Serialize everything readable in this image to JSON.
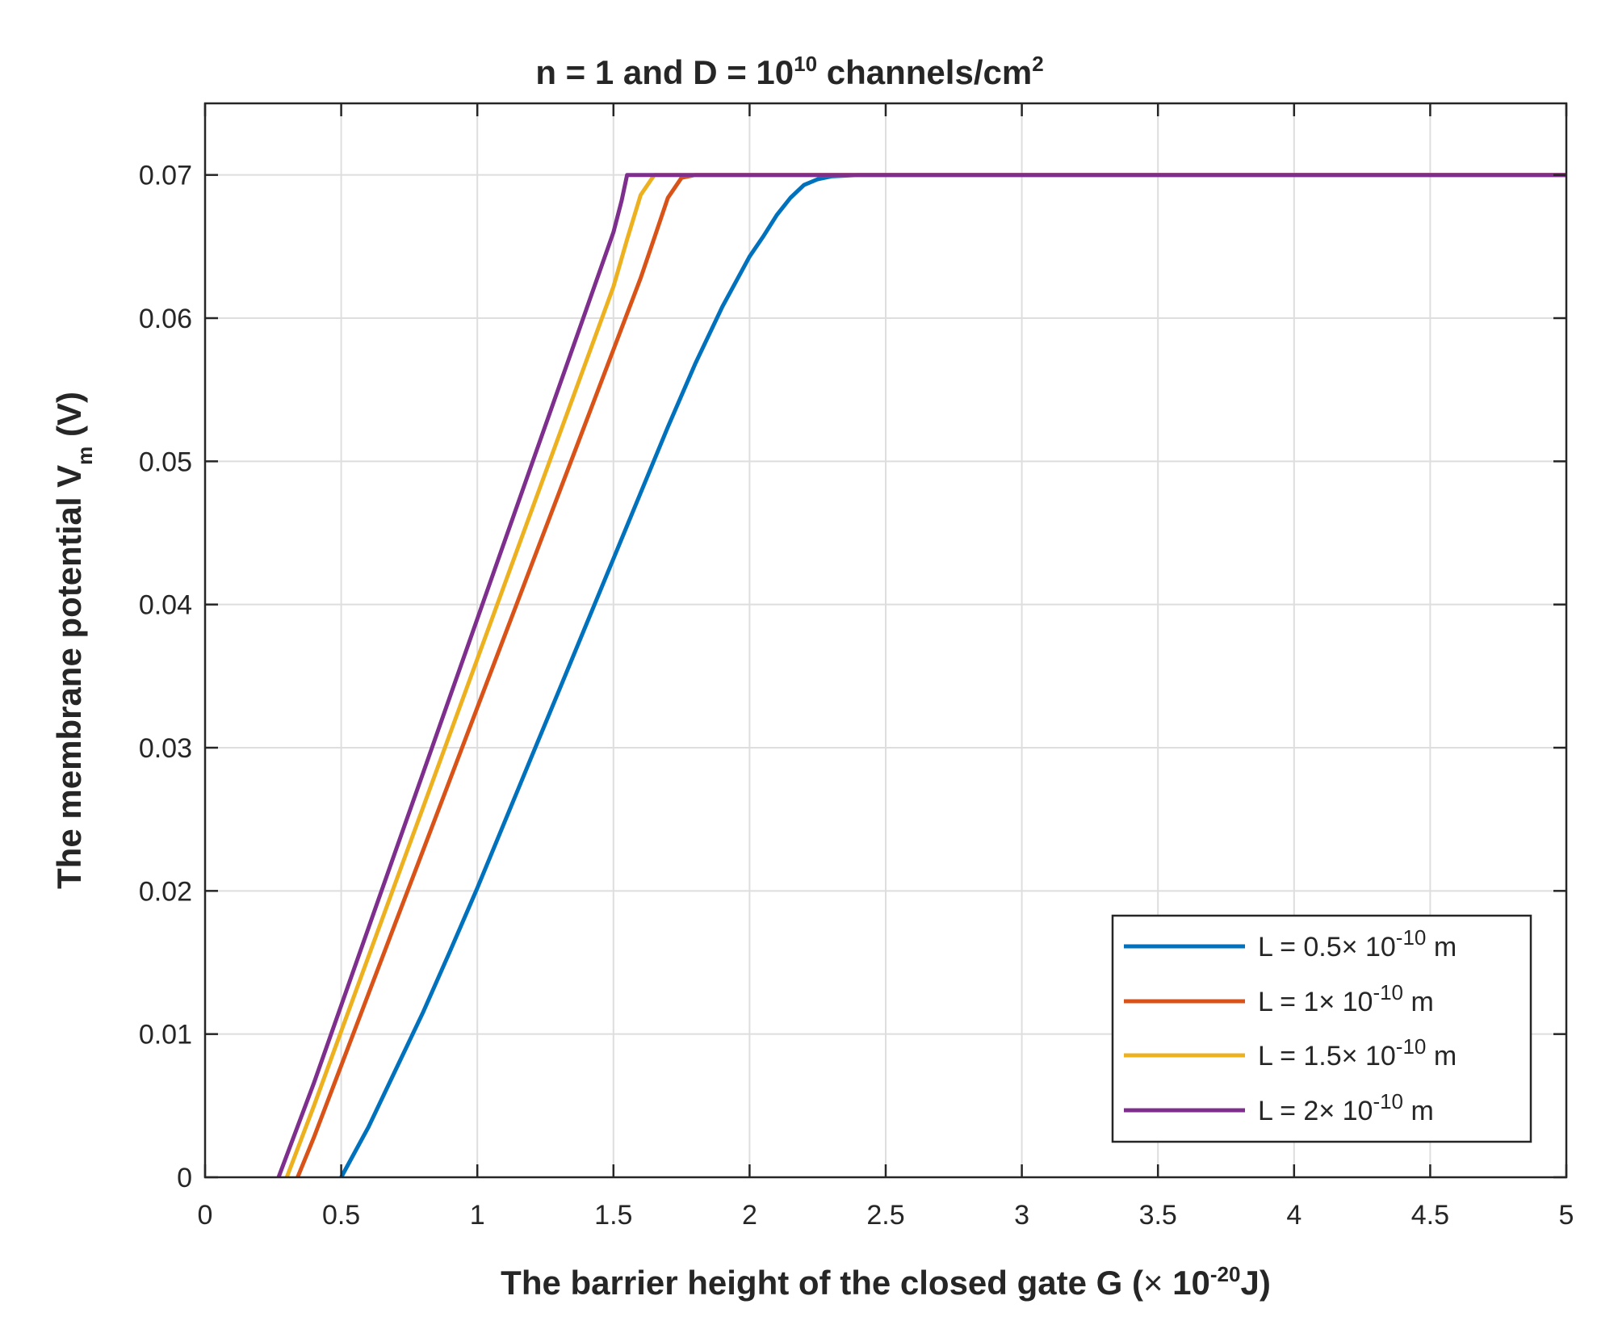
{
  "chart_data": {
    "type": "line",
    "title": {
      "prefix": "n = 1 and D = 10",
      "exp": "10",
      "mid": " channels/cm",
      "exp2": "2"
    },
    "xlabel": {
      "prefix": "The barrier height of the closed gate G (",
      "times": "×",
      "base": " 10",
      "exp": "-20",
      "suffix": "J)"
    },
    "ylabel": {
      "prefix": "The membrane potential V",
      "sub": "m",
      "suffix": " (V)"
    },
    "xlim": [
      0,
      5
    ],
    "ylim": [
      0,
      0.075
    ],
    "xticks": [
      0,
      0.5,
      1,
      1.5,
      2,
      2.5,
      3,
      3.5,
      4,
      4.5,
      5
    ],
    "xtick_labels": [
      "0",
      "0.5",
      "1",
      "1.5",
      "2",
      "2.5",
      "3",
      "3.5",
      "4",
      "4.5",
      "5"
    ],
    "yticks": [
      0,
      0.01,
      0.02,
      0.03,
      0.04,
      0.05,
      0.06,
      0.07
    ],
    "ytick_labels": [
      "0",
      "0.01",
      "0.02",
      "0.03",
      "0.04",
      "0.05",
      "0.06",
      "0.07"
    ],
    "grid": true,
    "legend_position": "bottom-right",
    "series": [
      {
        "name": "L = 0.5",
        "legend": {
          "prefix": "L = 0.5",
          "times": "×",
          "base": " 10",
          "exp": "-10",
          "unit": " m"
        },
        "color": "#0072BD",
        "x": [
          0.5,
          0.6,
          0.7,
          0.8,
          0.9,
          1.0,
          1.1,
          1.2,
          1.3,
          1.4,
          1.5,
          1.6,
          1.7,
          1.8,
          1.9,
          2.0,
          2.05,
          2.1,
          2.15,
          2.2,
          2.25,
          2.3,
          2.4,
          5.0
        ],
        "y": [
          0.0,
          0.0035,
          0.0075,
          0.0115,
          0.0158,
          0.0202,
          0.0248,
          0.0294,
          0.034,
          0.0386,
          0.0432,
          0.0478,
          0.0524,
          0.0568,
          0.0608,
          0.0643,
          0.0657,
          0.0672,
          0.0684,
          0.0693,
          0.0697,
          0.0699,
          0.07,
          0.07
        ]
      },
      {
        "name": "L = 1",
        "legend": {
          "prefix": "L = 1",
          "times": "×",
          "base": " 10",
          "exp": "-10",
          "unit": " m"
        },
        "color": "#D95319",
        "x": [
          0.34,
          0.4,
          0.5,
          0.6,
          0.7,
          0.8,
          0.9,
          1.0,
          1.1,
          1.2,
          1.3,
          1.4,
          1.5,
          1.6,
          1.65,
          1.7,
          1.75,
          1.8,
          5.0
        ],
        "y": [
          0.0,
          0.0028,
          0.0078,
          0.0128,
          0.0178,
          0.0228,
          0.0278,
          0.0328,
          0.0378,
          0.0428,
          0.0478,
          0.0528,
          0.0578,
          0.0628,
          0.0656,
          0.0684,
          0.0698,
          0.07,
          0.07
        ]
      },
      {
        "name": "L = 1.5",
        "legend": {
          "prefix": "L = 1.5",
          "times": "×",
          "base": " 10",
          "exp": "-10",
          "unit": " m"
        },
        "color": "#EDB120",
        "x": [
          0.3,
          0.4,
          0.5,
          0.6,
          0.7,
          0.8,
          0.9,
          1.0,
          1.1,
          1.2,
          1.3,
          1.4,
          1.5,
          1.55,
          1.6,
          1.65,
          5.0
        ],
        "y": [
          0.0,
          0.005,
          0.0102,
          0.0154,
          0.0206,
          0.0258,
          0.031,
          0.0362,
          0.0414,
          0.0466,
          0.0518,
          0.057,
          0.0622,
          0.0655,
          0.0686,
          0.07,
          0.07
        ]
      },
      {
        "name": "L = 2",
        "legend": {
          "prefix": "L = 2",
          "times": "×",
          "base": " 10",
          "exp": "-10",
          "unit": " m"
        },
        "color": "#7E2F8E",
        "x": [
          0.27,
          0.4,
          0.5,
          0.6,
          0.7,
          0.8,
          0.9,
          1.0,
          1.1,
          1.2,
          1.3,
          1.4,
          1.5,
          1.53,
          1.55,
          5.0
        ],
        "y": [
          0.0,
          0.0066,
          0.012,
          0.0174,
          0.0228,
          0.0282,
          0.0336,
          0.039,
          0.0444,
          0.0498,
          0.0552,
          0.0606,
          0.066,
          0.0682,
          0.07,
          0.07
        ]
      }
    ]
  }
}
